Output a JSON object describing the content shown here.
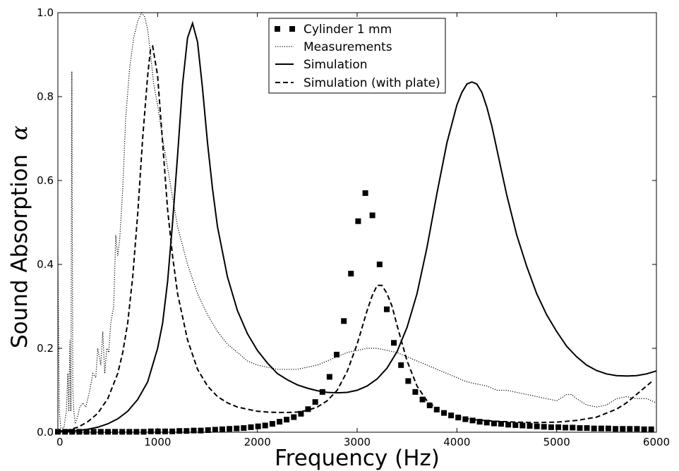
{
  "chart_data": {
    "type": "line",
    "title": "",
    "xlabel": "Frequency (Hz)",
    "ylabel": "Sound Absorption",
    "ylabel_symbol": "α",
    "xlim": [
      0,
      6000
    ],
    "ylim": [
      0,
      1.0
    ],
    "xticks": [
      0,
      1000,
      2000,
      3000,
      4000,
      5000,
      6000
    ],
    "yticks": [
      0.0,
      0.2,
      0.4,
      0.6,
      0.8,
      1.0
    ],
    "xtick_labels": [
      "0",
      "1000",
      "2000",
      "3000",
      "4000",
      "5000",
      "6000"
    ],
    "ytick_labels": [
      "0.0",
      "0.2",
      "0.4",
      "0.6",
      "0.8",
      "1.0"
    ],
    "grid": false,
    "legend_position": "top-center",
    "series": [
      {
        "name": "Cylinder 1 mm",
        "style": "squares",
        "color": "#000000",
        "x": [
          0,
          72,
          143,
          215,
          287,
          358,
          430,
          502,
          573,
          645,
          717,
          788,
          860,
          932,
          1003,
          1075,
          1147,
          1218,
          1290,
          1362,
          1433,
          1505,
          1577,
          1648,
          1720,
          1792,
          1863,
          1935,
          2007,
          2078,
          2150,
          2222,
          2293,
          2365,
          2437,
          2508,
          2580,
          2652,
          2723,
          2795,
          2867,
          2938,
          3010,
          3082,
          3153,
          3225,
          3297,
          3368,
          3440,
          3512,
          3583,
          3655,
          3727,
          3798,
          3870,
          3942,
          4013,
          4085,
          4157,
          4228,
          4300,
          4372,
          4443,
          4515,
          4587,
          4658,
          4730,
          4802,
          4873,
          4945,
          5017,
          5088,
          5160,
          5232,
          5303,
          5375,
          5447,
          5518,
          5590,
          5662,
          5733,
          5805,
          5877,
          5948
        ],
        "y": [
          0.001,
          0.001,
          0.001,
          0.001,
          0.001,
          0.001,
          0.001,
          0.001,
          0.001,
          0.001,
          0.001,
          0.001,
          0.001,
          0.002,
          0.002,
          0.002,
          0.002,
          0.003,
          0.003,
          0.004,
          0.004,
          0.005,
          0.006,
          0.007,
          0.008,
          0.009,
          0.01,
          0.012,
          0.014,
          0.016,
          0.02,
          0.025,
          0.03,
          0.036,
          0.044,
          0.055,
          0.072,
          0.096,
          0.132,
          0.185,
          0.265,
          0.378,
          0.503,
          0.57,
          0.517,
          0.4,
          0.293,
          0.213,
          0.16,
          0.122,
          0.096,
          0.078,
          0.064,
          0.054,
          0.046,
          0.04,
          0.035,
          0.031,
          0.028,
          0.025,
          0.023,
          0.021,
          0.02,
          0.018,
          0.017,
          0.016,
          0.015,
          0.014,
          0.013,
          0.012,
          0.012,
          0.011,
          0.011,
          0.01,
          0.01,
          0.009,
          0.009,
          0.009,
          0.008,
          0.008,
          0.008,
          0.008,
          0.007,
          0.007
        ]
      },
      {
        "name": "Measurements",
        "style": "dotted",
        "color": "#000000",
        "x": [
          0,
          15,
          30,
          60,
          85,
          100,
          110,
          120,
          130,
          140,
          150,
          160,
          175,
          200,
          220,
          250,
          280,
          320,
          350,
          380,
          400,
          430,
          450,
          470,
          490,
          510,
          530,
          560,
          580,
          600,
          620,
          650,
          680,
          720,
          760,
          800,
          840,
          870,
          900,
          930,
          960,
          1000,
          1050,
          1100,
          1150,
          1200,
          1300,
          1400,
          1500,
          1600,
          1700,
          1800,
          1900,
          2000,
          2100,
          2200,
          2300,
          2400,
          2500,
          2600,
          2700,
          2800,
          2900,
          3000,
          3100,
          3200,
          3300,
          3400,
          3500,
          3600,
          3700,
          3800,
          3900,
          4000,
          4100,
          4200,
          4300,
          4400,
          4500,
          4600,
          4700,
          4800,
          4900,
          5000,
          5100,
          5150,
          5200,
          5300,
          5400,
          5500,
          5600,
          5700,
          5800,
          5900,
          6000
        ],
        "y": [
          0.42,
          0.05,
          0.01,
          0.01,
          0.05,
          0.14,
          0.05,
          0.22,
          0.05,
          0.86,
          0.1,
          0.05,
          0.02,
          0.04,
          0.06,
          0.07,
          0.06,
          0.1,
          0.14,
          0.13,
          0.2,
          0.16,
          0.24,
          0.14,
          0.2,
          0.19,
          0.26,
          0.3,
          0.47,
          0.42,
          0.46,
          0.58,
          0.75,
          0.87,
          0.94,
          0.98,
          1.0,
          0.99,
          0.96,
          0.9,
          0.83,
          0.78,
          0.7,
          0.63,
          0.56,
          0.49,
          0.4,
          0.33,
          0.28,
          0.24,
          0.21,
          0.19,
          0.17,
          0.16,
          0.155,
          0.15,
          0.15,
          0.15,
          0.155,
          0.16,
          0.17,
          0.18,
          0.19,
          0.195,
          0.2,
          0.2,
          0.195,
          0.19,
          0.18,
          0.17,
          0.16,
          0.15,
          0.14,
          0.13,
          0.12,
          0.115,
          0.11,
          0.1,
          0.1,
          0.095,
          0.09,
          0.085,
          0.08,
          0.075,
          0.09,
          0.09,
          0.08,
          0.065,
          0.06,
          0.065,
          0.08,
          0.085,
          0.08,
          0.08,
          0.07
        ]
      },
      {
        "name": "Simulation",
        "style": "solid",
        "color": "#000000",
        "x": [
          0,
          100,
          200,
          300,
          400,
          500,
          600,
          700,
          800,
          900,
          1000,
          1050,
          1100,
          1150,
          1200,
          1250,
          1300,
          1350,
          1400,
          1450,
          1500,
          1550,
          1600,
          1700,
          1800,
          1900,
          2000,
          2100,
          2200,
          2300,
          2400,
          2500,
          2600,
          2700,
          2800,
          2900,
          3000,
          3100,
          3200,
          3300,
          3400,
          3500,
          3600,
          3700,
          3800,
          3900,
          4000,
          4050,
          4100,
          4150,
          4200,
          4250,
          4300,
          4350,
          4400,
          4450,
          4500,
          4600,
          4700,
          4800,
          4900,
          5000,
          5100,
          5200,
          5300,
          5400,
          5500,
          5600,
          5700,
          5800,
          5900,
          6000
        ],
        "y": [
          0.001,
          0.002,
          0.004,
          0.007,
          0.012,
          0.02,
          0.032,
          0.05,
          0.078,
          0.12,
          0.2,
          0.26,
          0.36,
          0.5,
          0.66,
          0.83,
          0.94,
          0.975,
          0.93,
          0.82,
          0.69,
          0.58,
          0.49,
          0.37,
          0.29,
          0.235,
          0.195,
          0.165,
          0.14,
          0.125,
          0.113,
          0.105,
          0.099,
          0.095,
          0.094,
          0.095,
          0.1,
          0.11,
          0.127,
          0.153,
          0.192,
          0.25,
          0.33,
          0.44,
          0.57,
          0.69,
          0.78,
          0.81,
          0.83,
          0.835,
          0.83,
          0.81,
          0.775,
          0.73,
          0.675,
          0.62,
          0.565,
          0.47,
          0.395,
          0.33,
          0.28,
          0.24,
          0.205,
          0.18,
          0.16,
          0.147,
          0.139,
          0.135,
          0.134,
          0.135,
          0.139,
          0.146
        ]
      },
      {
        "name": "Simulation (with plate)",
        "style": "dashed",
        "color": "#000000",
        "x": [
          0,
          100,
          200,
          300,
          400,
          500,
          600,
          650,
          700,
          750,
          800,
          850,
          900,
          930,
          950,
          1000,
          1050,
          1100,
          1150,
          1200,
          1300,
          1400,
          1500,
          1600,
          1700,
          1800,
          1900,
          2000,
          2100,
          2200,
          2300,
          2400,
          2500,
          2600,
          2700,
          2800,
          2900,
          3000,
          3100,
          3150,
          3200,
          3250,
          3300,
          3350,
          3400,
          3500,
          3600,
          3700,
          3800,
          3900,
          4000,
          4200,
          4400,
          4600,
          4800,
          5000,
          5200,
          5400,
          5600,
          5700,
          5800,
          5900,
          5950
        ],
        "y": [
          0.002,
          0.005,
          0.012,
          0.025,
          0.045,
          0.08,
          0.14,
          0.19,
          0.26,
          0.37,
          0.52,
          0.7,
          0.85,
          0.915,
          0.92,
          0.85,
          0.69,
          0.53,
          0.42,
          0.33,
          0.22,
          0.15,
          0.11,
          0.085,
          0.07,
          0.06,
          0.055,
          0.05,
          0.048,
          0.047,
          0.047,
          0.048,
          0.052,
          0.06,
          0.075,
          0.1,
          0.145,
          0.21,
          0.29,
          0.325,
          0.35,
          0.35,
          0.33,
          0.3,
          0.255,
          0.17,
          0.11,
          0.075,
          0.055,
          0.043,
          0.036,
          0.029,
          0.026,
          0.024,
          0.023,
          0.024,
          0.028,
          0.036,
          0.055,
          0.07,
          0.09,
          0.11,
          0.12
        ]
      }
    ]
  }
}
